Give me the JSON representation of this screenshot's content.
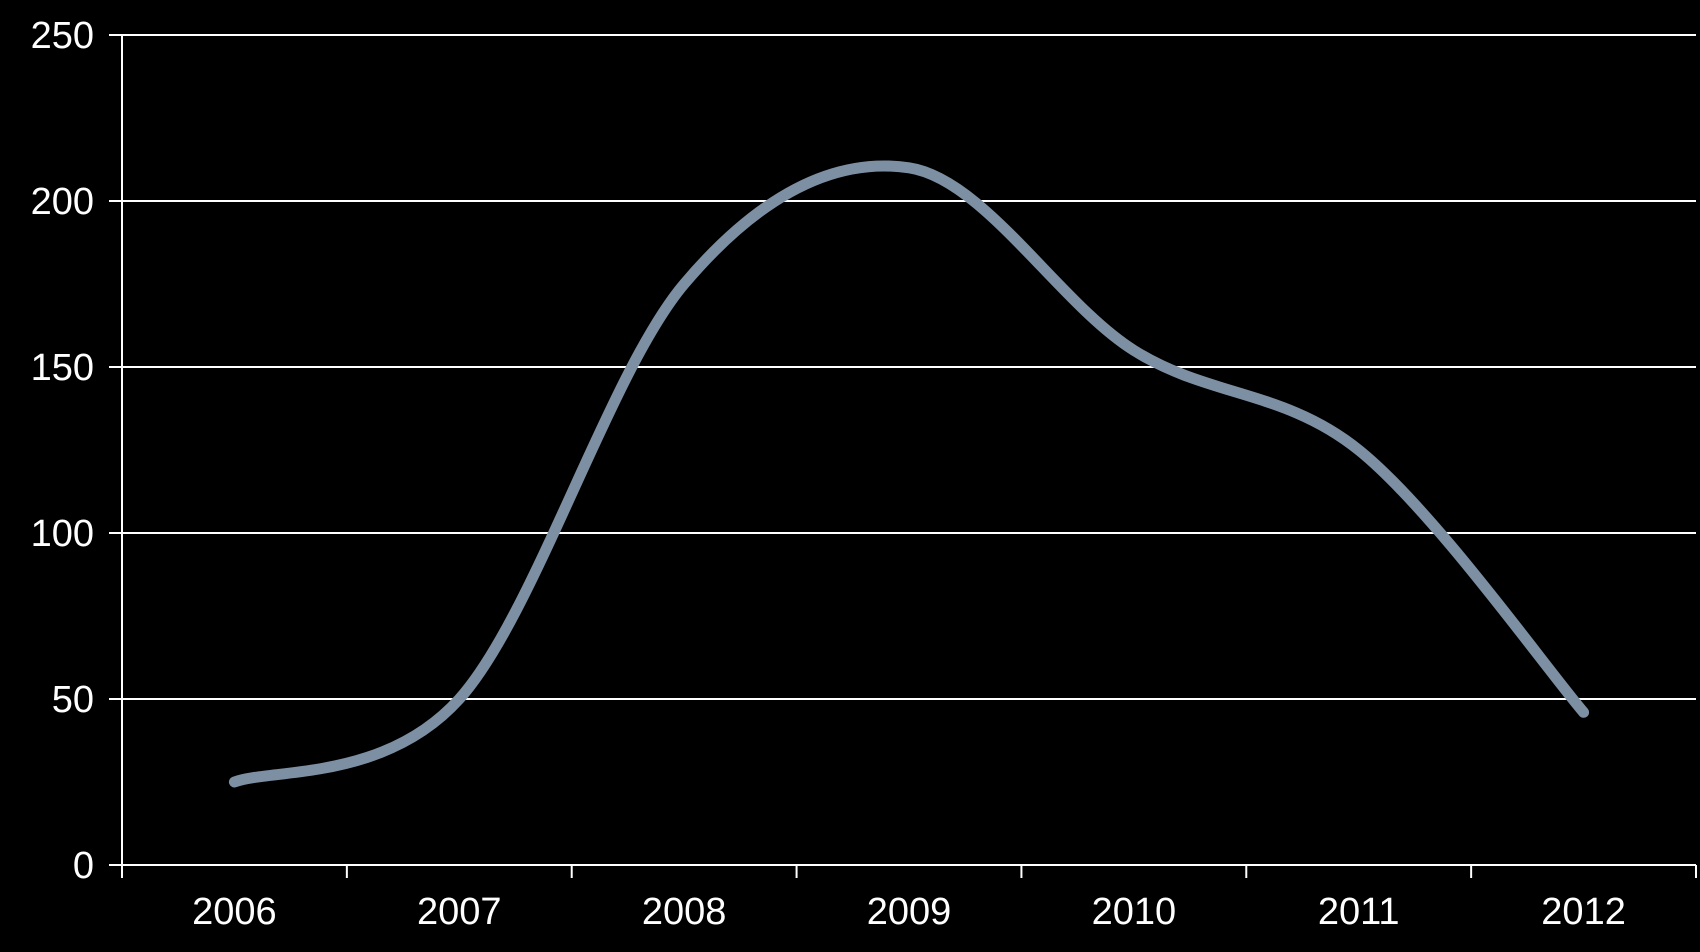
{
  "chart_data": {
    "type": "line",
    "smooth": true,
    "categories": [
      "2006",
      "2007",
      "2008",
      "2009",
      "2010",
      "2011",
      "2012"
    ],
    "series": [
      {
        "values": [
          25,
          50,
          175,
          210,
          155,
          125,
          46
        ]
      }
    ],
    "title": "",
    "xlabel": "",
    "ylabel": "",
    "ylim": [
      0,
      250
    ],
    "yticks": [
      "0",
      "50",
      "100",
      "150",
      "200",
      "250"
    ],
    "grid": true,
    "legend": "none",
    "colors": {
      "background": "#000000",
      "line": "#7d8fa3",
      "grid": "#ffffff",
      "text": "#ffffff"
    }
  }
}
